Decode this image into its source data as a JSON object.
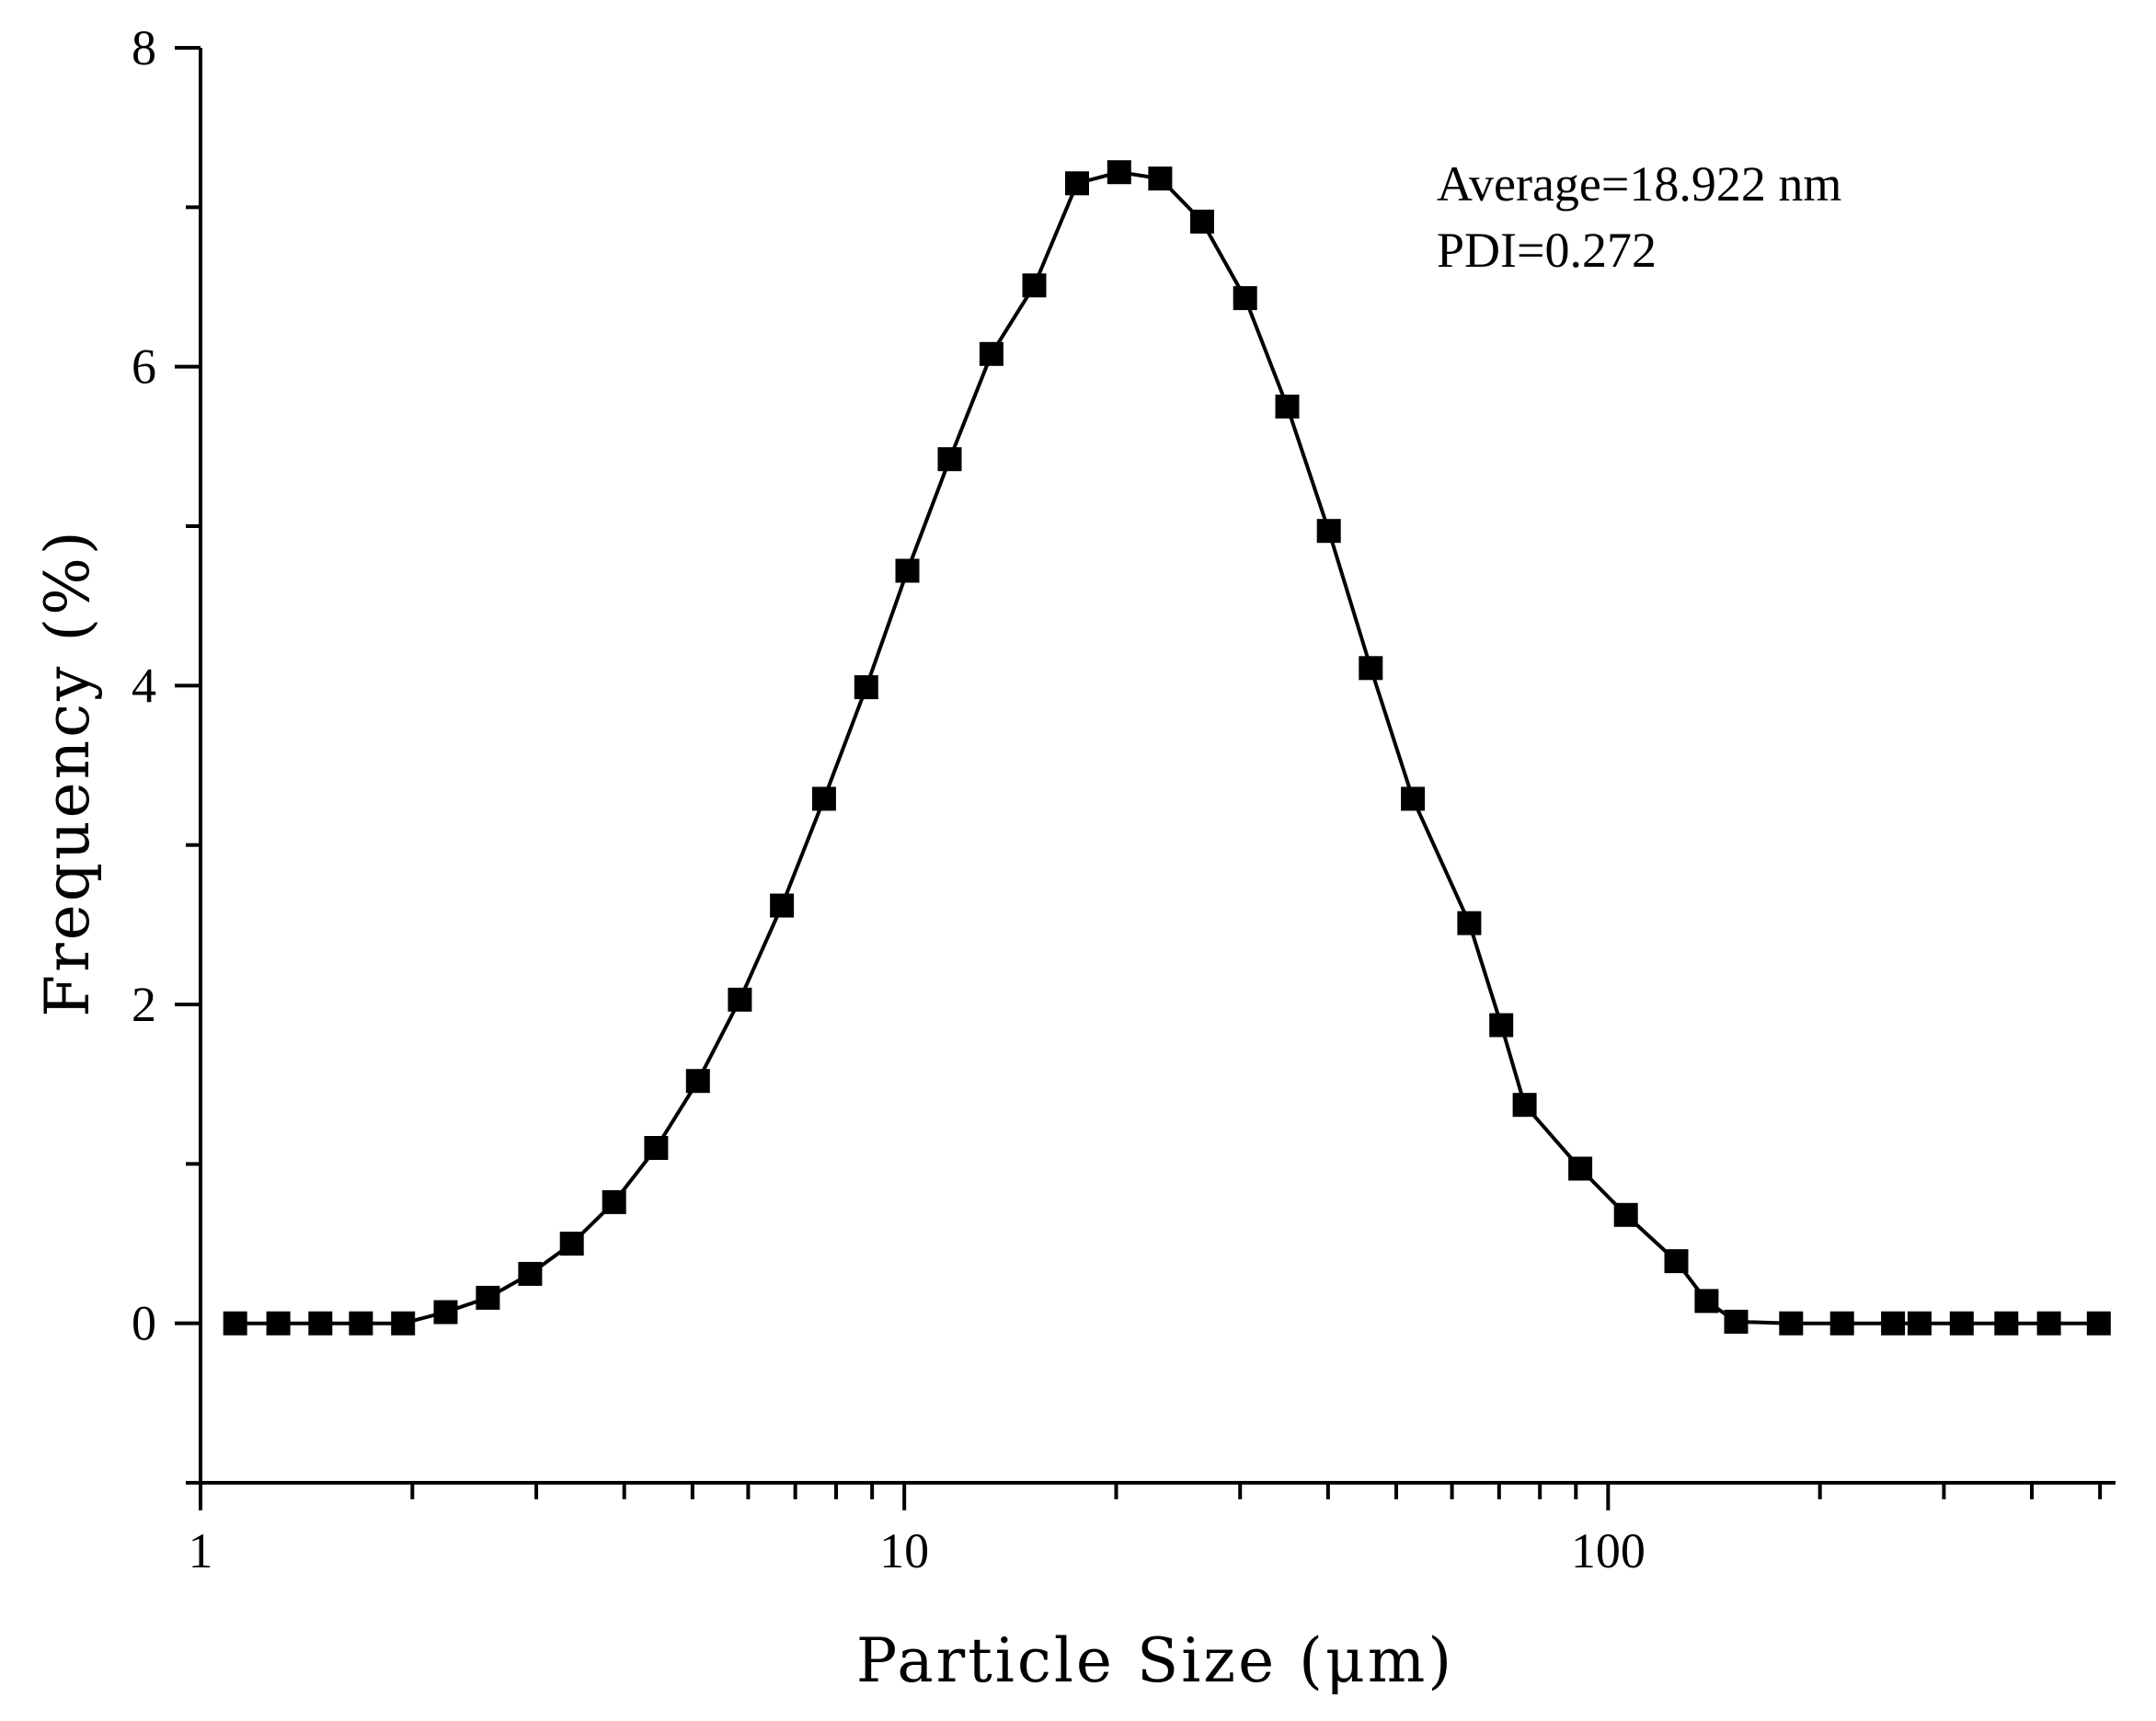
{
  "chart_data": {
    "type": "line",
    "title": "",
    "xlabel": "Particle Size (μm)",
    "ylabel": "Frequency (%)",
    "x_scale": "log",
    "xlim": [
      1,
      526
    ],
    "ylim": [
      -1,
      8
    ],
    "x_major_ticks": [
      1,
      10,
      100
    ],
    "x_major_tick_labels": [
      "1",
      "10",
      "100"
    ],
    "x_minor_ticks": [
      2,
      3,
      4,
      5,
      6,
      7,
      8,
      9,
      20,
      30,
      40,
      50,
      60,
      70,
      80,
      90,
      200,
      300,
      400,
      500
    ],
    "y_major_ticks": [
      0,
      2,
      4,
      6,
      8
    ],
    "y_major_tick_labels": [
      "0",
      "2",
      "4",
      "6",
      "8"
    ],
    "y_minor_ticks": [
      -1,
      1,
      3,
      5,
      7
    ],
    "grid": false,
    "legend": "none",
    "marker": "square",
    "line_style": "solid",
    "color": "#000000",
    "annotations": [
      "Average=18.922 nm",
      "PDI=0.272"
    ],
    "series": [
      {
        "x": [
          1.12,
          1.29,
          1.48,
          1.69,
          1.94,
          2.23,
          2.56,
          2.94,
          3.37,
          3.87,
          4.44,
          5.09,
          5.84,
          6.7,
          7.69,
          8.83,
          10.1,
          11.6,
          13.3,
          15.3,
          17.6,
          20.2,
          23.1,
          26.5,
          30.5,
          35.0,
          40.1,
          46.0,
          52.8,
          63.5,
          70.5,
          76.1,
          91.3,
          106,
          125,
          138,
          152,
          182,
          215,
          254,
          277,
          318,
          368,
          423,
          498
        ],
        "y": [
          0,
          0,
          0,
          0,
          0,
          0.07,
          0.16,
          0.31,
          0.5,
          0.76,
          1.1,
          1.52,
          2.03,
          2.62,
          3.29,
          3.99,
          4.72,
          5.42,
          6.08,
          6.51,
          7.15,
          7.22,
          7.18,
          6.91,
          6.43,
          5.75,
          4.97,
          4.11,
          3.29,
          2.51,
          1.87,
          1.37,
          0.97,
          0.68,
          0.39,
          0.14,
          0.01,
          0,
          0,
          0,
          0,
          0,
          0,
          0,
          0
        ]
      }
    ]
  }
}
